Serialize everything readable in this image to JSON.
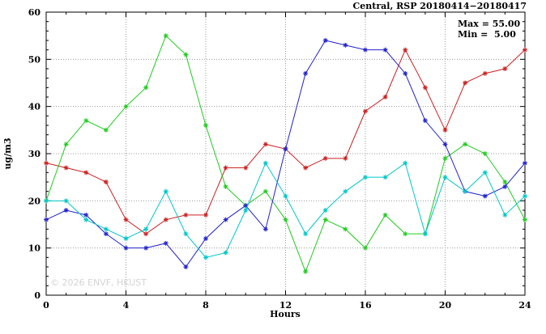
{
  "title": "Central, RSP 20180414−20180417",
  "annotation": {
    "max_label": "Max = 55.00",
    "min_label": "Min =  5.00"
  },
  "watermark": "© 2026 ENVF, HKUST",
  "chart_data": {
    "type": "line",
    "title": "Central, RSP 20180414−20180417",
    "xlabel": "Hours",
    "ylabel": "ug/m3",
    "xlim": [
      0,
      24
    ],
    "ylim": [
      0,
      60
    ],
    "x_ticks": [
      0,
      4,
      8,
      12,
      16,
      20,
      24
    ],
    "y_ticks": [
      0,
      10,
      20,
      30,
      40,
      50,
      60
    ],
    "x_minor_step": 1,
    "y_minor_step": 2,
    "grid": true,
    "grid_color": "#9a9a9a",
    "legend": "none",
    "max_value": 55.0,
    "min_value": 5.0,
    "x": [
      0,
      1,
      2,
      3,
      4,
      5,
      6,
      7,
      8,
      9,
      10,
      11,
      12,
      13,
      14,
      15,
      16,
      17,
      18,
      19,
      20,
      21,
      22,
      23,
      24
    ],
    "series": [
      {
        "name": "red",
        "color": "#cc2222",
        "values": [
          28,
          27,
          26,
          24,
          16,
          13,
          16,
          17,
          17,
          27,
          27,
          32,
          31,
          27,
          29,
          29,
          39,
          42,
          52,
          44,
          35,
          45,
          47,
          48,
          52
        ]
      },
      {
        "name": "green",
        "color": "#22cc22",
        "values": [
          20,
          32,
          37,
          35,
          40,
          44,
          55,
          51,
          36,
          23,
          19,
          22,
          16,
          5,
          16,
          14,
          10,
          17,
          13,
          13,
          29,
          32,
          30,
          24,
          16
        ]
      },
      {
        "name": "blue",
        "color": "#2222cc",
        "values": [
          16,
          18,
          17,
          13,
          10,
          10,
          11,
          6,
          12,
          16,
          19,
          14,
          31,
          47,
          54,
          53,
          52,
          52,
          47,
          37,
          32,
          22,
          21,
          23,
          28
        ]
      },
      {
        "name": "cyan",
        "color": "#00c8c8",
        "values": [
          20,
          20,
          16,
          14,
          12,
          14,
          22,
          13,
          8,
          9,
          18,
          28,
          21,
          13,
          18,
          22,
          25,
          25,
          28,
          13,
          25,
          22,
          26,
          17,
          21
        ]
      }
    ]
  }
}
